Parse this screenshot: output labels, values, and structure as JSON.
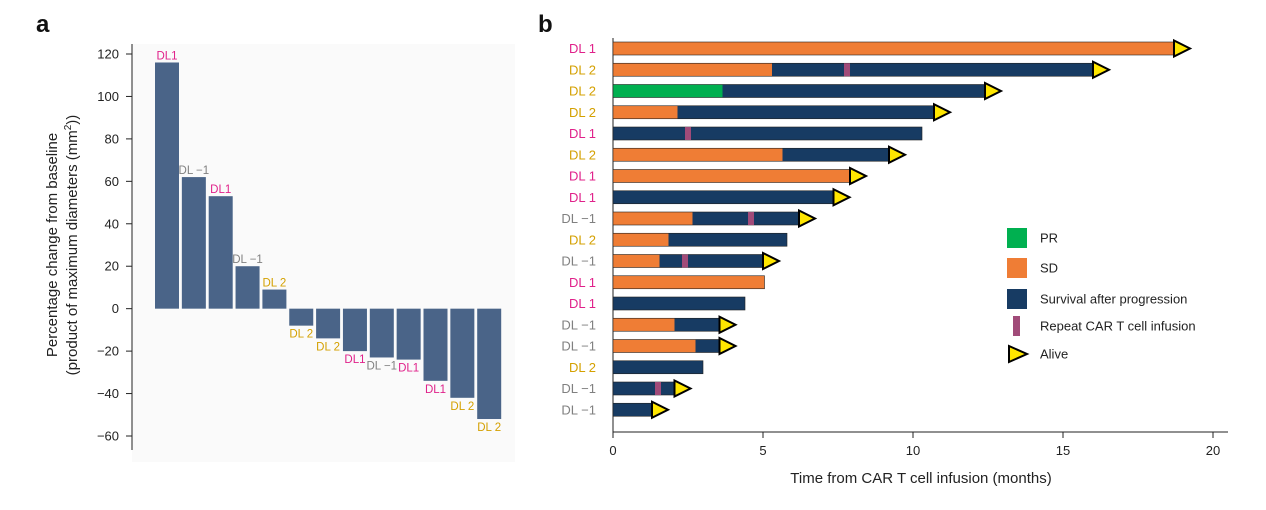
{
  "colors": {
    "bar_a": "#4a6488",
    "sd": "#ef7d35",
    "pr": "#00b050",
    "progression": "#173b63",
    "repeat": "#a14b79",
    "alive_fill": "#ffe600",
    "DL1": "#e0218a",
    "DL2": "#d4a000",
    "DL-1": "#808080"
  },
  "chart_data": [
    {
      "panel": "a",
      "type": "bar",
      "ylabel_line1": "Percentage change from baseline",
      "ylabel_line2": "(product of maximum diameters (mm",
      "ylabel_sup": "2",
      "ylabel_close": "))",
      "ylim": [
        -65,
        125
      ],
      "yticks": [
        120,
        100,
        80,
        60,
        40,
        20,
        0,
        -20,
        -40,
        -60
      ],
      "ytick_labels": [
        "120",
        "100",
        "80",
        "60",
        "40",
        "20",
        "0",
        "−20",
        "−40",
        "−60"
      ],
      "values": [
        116,
        62,
        53,
        20,
        9,
        -8,
        -14,
        -20,
        -23,
        -24,
        -34,
        -42,
        -52
      ],
      "labels": [
        "DL1",
        "DL −1",
        "DL1",
        "DL −1",
        "DL 2",
        "DL 2",
        "DL 2",
        "DL1",
        "DL −1",
        "DL1",
        "DL1",
        "DL 2",
        "DL 2"
      ],
      "levels": [
        "DL1",
        "DL-1",
        "DL1",
        "DL-1",
        "DL2",
        "DL2",
        "DL2",
        "DL1",
        "DL-1",
        "DL1",
        "DL1",
        "DL2",
        "DL2"
      ]
    },
    {
      "panel": "b",
      "type": "swimmer",
      "xlabel": "Time from CAR T cell infusion (months)",
      "xlim": [
        0,
        20.5
      ],
      "xticks": [
        0,
        5,
        10,
        15,
        20
      ],
      "xtick_labels": [
        "0",
        "5",
        "10",
        "15",
        "20"
      ],
      "rows": [
        {
          "label": "DL 1",
          "level": "DL1",
          "segments": [
            {
              "start": 0,
              "end": 18.8,
              "type": "SD"
            }
          ],
          "repeats": [],
          "alive_at": 18.8
        },
        {
          "label": "DL 2",
          "level": "DL2",
          "segments": [
            {
              "start": 0,
              "end": 5.3,
              "type": "SD"
            },
            {
              "start": 5.3,
              "end": 16.1,
              "type": "progression"
            }
          ],
          "repeats": [
            7.8
          ],
          "alive_at": 16.1
        },
        {
          "label": "DL 2",
          "level": "DL2",
          "segments": [
            {
              "start": 0,
              "end": 3.65,
              "type": "PR"
            },
            {
              "start": 3.65,
              "end": 12.5,
              "type": "progression"
            }
          ],
          "repeats": [],
          "alive_at": 12.5
        },
        {
          "label": "DL 2",
          "level": "DL2",
          "segments": [
            {
              "start": 0,
              "end": 2.15,
              "type": "SD"
            },
            {
              "start": 2.15,
              "end": 10.8,
              "type": "progression"
            }
          ],
          "repeats": [],
          "alive_at": 10.8
        },
        {
          "label": "DL 1",
          "level": "DL1",
          "segments": [
            {
              "start": 0,
              "end": 10.3,
              "type": "progression"
            }
          ],
          "repeats": [
            2.5
          ],
          "alive_at": null
        },
        {
          "label": "DL 2",
          "level": "DL2",
          "segments": [
            {
              "start": 0,
              "end": 5.65,
              "type": "SD"
            },
            {
              "start": 5.65,
              "end": 9.3,
              "type": "progression"
            }
          ],
          "repeats": [],
          "alive_at": 9.3
        },
        {
          "label": "DL 1",
          "level": "DL1",
          "segments": [
            {
              "start": 0,
              "end": 8.0,
              "type": "SD"
            }
          ],
          "repeats": [],
          "alive_at": 8.0
        },
        {
          "label": "DL 1",
          "level": "DL1",
          "segments": [
            {
              "start": 0,
              "end": 7.45,
              "type": "progression"
            }
          ],
          "repeats": [],
          "alive_at": 7.45
        },
        {
          "label": "DL −1",
          "level": "DL-1",
          "segments": [
            {
              "start": 0,
              "end": 2.65,
              "type": "SD"
            },
            {
              "start": 2.65,
              "end": 6.3,
              "type": "progression"
            }
          ],
          "repeats": [
            4.6
          ],
          "alive_at": 6.3
        },
        {
          "label": "DL 2",
          "level": "DL2",
          "segments": [
            {
              "start": 0,
              "end": 1.85,
              "type": "SD"
            },
            {
              "start": 1.85,
              "end": 5.8,
              "type": "progression"
            }
          ],
          "repeats": [],
          "alive_at": null
        },
        {
          "label": "DL −1",
          "level": "DL-1",
          "segments": [
            {
              "start": 0,
              "end": 1.55,
              "type": "SD"
            },
            {
              "start": 1.55,
              "end": 5.1,
              "type": "progression"
            }
          ],
          "repeats": [
            2.4
          ],
          "alive_at": 5.1
        },
        {
          "label": "DL 1",
          "level": "DL1",
          "segments": [
            {
              "start": 0,
              "end": 5.05,
              "type": "SD"
            }
          ],
          "repeats": [],
          "alive_at": null
        },
        {
          "label": "DL 1",
          "level": "DL1",
          "segments": [
            {
              "start": 0,
              "end": 4.4,
              "type": "progression"
            }
          ],
          "repeats": [],
          "alive_at": null
        },
        {
          "label": "DL −1",
          "level": "DL-1",
          "segments": [
            {
              "start": 0,
              "end": 2.05,
              "type": "SD"
            },
            {
              "start": 2.05,
              "end": 3.65,
              "type": "progression"
            }
          ],
          "repeats": [],
          "alive_at": 3.65
        },
        {
          "label": "DL −1",
          "level": "DL-1",
          "segments": [
            {
              "start": 0,
              "end": 2.75,
              "type": "SD"
            },
            {
              "start": 2.75,
              "end": 3.65,
              "type": "progression"
            }
          ],
          "repeats": [],
          "alive_at": 3.65
        },
        {
          "label": "DL 2",
          "level": "DL2",
          "segments": [
            {
              "start": 0,
              "end": 3.0,
              "type": "progression"
            }
          ],
          "repeats": [],
          "alive_at": null
        },
        {
          "label": "DL −1",
          "level": "DL-1",
          "segments": [
            {
              "start": 0,
              "end": 2.15,
              "type": "progression"
            }
          ],
          "repeats": [
            1.5
          ],
          "alive_at": 2.15
        },
        {
          "label": "DL −1",
          "level": "DL-1",
          "segments": [
            {
              "start": 0,
              "end": 1.4,
              "type": "progression"
            }
          ],
          "repeats": [],
          "alive_at": 1.4
        }
      ],
      "legend": [
        {
          "key": "PR",
          "label": "PR"
        },
        {
          "key": "SD",
          "label": "SD"
        },
        {
          "key": "progression",
          "label": "Survival after progression"
        },
        {
          "key": "repeat",
          "label": "Repeat CAR T cell infusion"
        },
        {
          "key": "alive",
          "label": "Alive"
        }
      ]
    }
  ],
  "panel_labels": {
    "a": "a",
    "b": "b"
  }
}
